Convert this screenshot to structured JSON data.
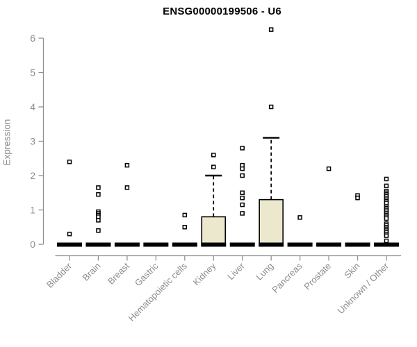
{
  "chart_data": {
    "type": "boxplot",
    "title": "ENSG00000199506 - U6",
    "ylabel": "Expression",
    "xlabel": "",
    "ylim": [
      0,
      6
    ],
    "yticks": [
      0,
      1,
      2,
      3,
      4,
      5,
      6
    ],
    "grid": false,
    "legend": "none",
    "box_fill_color": "#ece8cd",
    "box_border_color": "#000000",
    "axis_color": "#919191",
    "axis_text_color": "#8c8c8c",
    "title_color": "#000000",
    "categories": [
      "Bladder",
      "Brain",
      "Breast",
      "Gastric",
      "Hematopoietic cells",
      "Kidney",
      "Liver",
      "Lung",
      "Pancreas",
      "Prostate",
      "Skin",
      "Unknown / Other"
    ],
    "boxes": [
      {
        "name": "Bladder",
        "q1": 0,
        "median": 0,
        "q3": 0,
        "whisker_low": 0,
        "whisker_high": 0,
        "outliers": [
          2.4,
          0.3
        ]
      },
      {
        "name": "Brain",
        "q1": 0,
        "median": 0,
        "q3": 0,
        "whisker_low": 0,
        "whisker_high": 0,
        "outliers": [
          1.65,
          1.45,
          0.95,
          0.9,
          0.85,
          0.8,
          0.7,
          0.4
        ]
      },
      {
        "name": "Breast",
        "q1": 0,
        "median": 0,
        "q3": 0,
        "whisker_low": 0,
        "whisker_high": 0,
        "outliers": [
          2.3,
          1.65
        ]
      },
      {
        "name": "Gastric",
        "q1": 0,
        "median": 0,
        "q3": 0,
        "whisker_low": 0,
        "whisker_high": 0,
        "outliers": []
      },
      {
        "name": "Hematopoietic cells",
        "q1": 0,
        "median": 0,
        "q3": 0,
        "whisker_low": 0,
        "whisker_high": 0,
        "outliers": [
          0.85,
          0.5
        ]
      },
      {
        "name": "Kidney",
        "q1": 0,
        "median": 0,
        "q3": 0.8,
        "whisker_low": 0,
        "whisker_high": 2.0,
        "outliers": [
          2.6,
          2.25
        ]
      },
      {
        "name": "Liver",
        "q1": 0,
        "median": 0,
        "q3": 0,
        "whisker_low": 0,
        "whisker_high": 0,
        "outliers": [
          2.8,
          2.3,
          2.2,
          2.0,
          1.5,
          1.35,
          1.15,
          0.9
        ]
      },
      {
        "name": "Lung",
        "q1": 0,
        "median": 0,
        "q3": 1.3,
        "whisker_low": 0,
        "whisker_high": 3.1,
        "outliers": [
          6.25,
          4.0
        ]
      },
      {
        "name": "Pancreas",
        "q1": 0,
        "median": 0,
        "q3": 0,
        "whisker_low": 0,
        "whisker_high": 0,
        "outliers": [
          0.78
        ]
      },
      {
        "name": "Prostate",
        "q1": 0,
        "median": 0,
        "q3": 0,
        "whisker_low": 0,
        "whisker_high": 0,
        "outliers": [
          2.2
        ]
      },
      {
        "name": "Skin",
        "q1": 0,
        "median": 0,
        "q3": 0,
        "whisker_low": 0,
        "whisker_high": 0,
        "outliers": [
          1.42,
          1.35
        ]
      },
      {
        "name": "Unknown / Other",
        "q1": 0,
        "median": 0,
        "q3": 0,
        "whisker_low": 0,
        "whisker_high": 0,
        "outliers": [
          1.9,
          1.7,
          1.55,
          1.5,
          1.45,
          1.4,
          1.35,
          1.3,
          1.25,
          1.2,
          1.1,
          1.05,
          1.0,
          0.95,
          0.9,
          0.85,
          0.8,
          0.75,
          0.6,
          0.55,
          0.5,
          0.45,
          0.4,
          0.35,
          0.3,
          0.25,
          0.1
        ]
      }
    ]
  }
}
